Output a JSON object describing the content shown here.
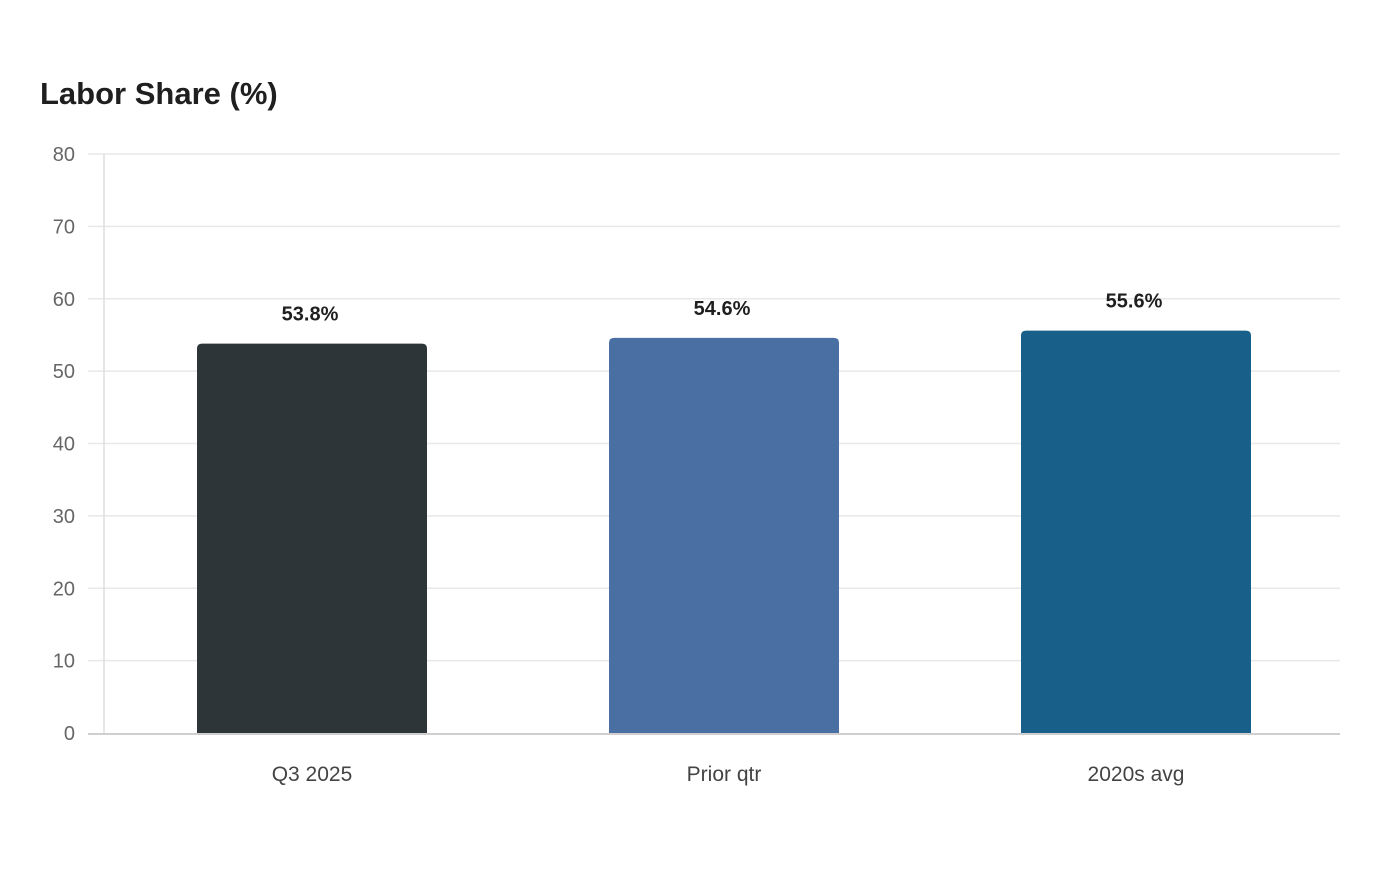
{
  "chart_data": {
    "type": "bar",
    "title": "Labor Share (%)",
    "categories": [
      "Q3 2025",
      "Prior qtr",
      "2020s avg"
    ],
    "values": [
      53.8,
      54.6,
      55.6
    ],
    "data_labels": [
      "53.8%",
      "54.6%",
      "55.6%"
    ],
    "colors": [
      "#2e3538",
      "#4a6fa3",
      "#186089"
    ],
    "ylim": [
      0,
      80
    ],
    "yticks": [
      0,
      10,
      20,
      30,
      40,
      50,
      60,
      70,
      80
    ],
    "xlabel": "",
    "ylabel": "",
    "grid": true,
    "legend": "none"
  }
}
